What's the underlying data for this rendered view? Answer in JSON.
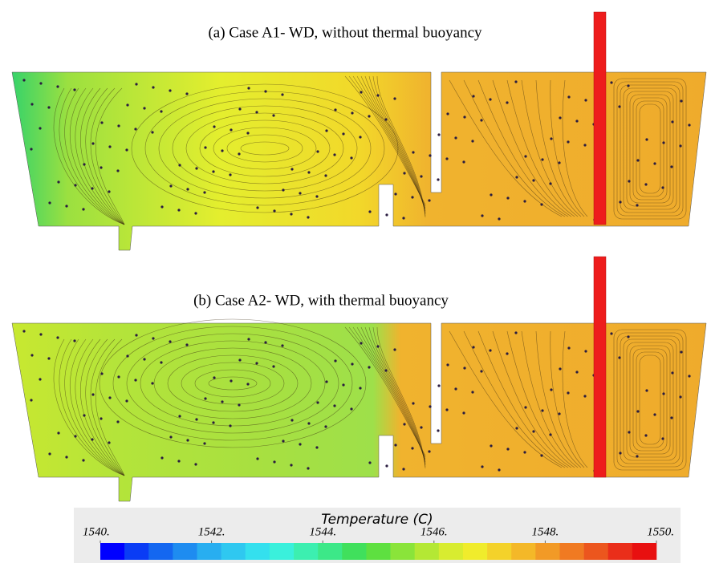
{
  "panels": [
    {
      "title": "(a)   Case A1- WD, without thermal buoyancy"
    },
    {
      "title": "(b) Case A2- WD, with thermal buoyancy"
    }
  ],
  "colorbar": {
    "label": "Temperature (C)",
    "lim": [
      1540,
      1550
    ],
    "ticks": [
      {
        "value": 1540,
        "label": "1540."
      },
      {
        "value": 1542,
        "label": "1542."
      },
      {
        "value": 1544,
        "label": "1544."
      },
      {
        "value": 1546,
        "label": "1546."
      },
      {
        "value": 1548,
        "label": "1548."
      },
      {
        "value": 1550,
        "label": "1550."
      }
    ]
  }
}
